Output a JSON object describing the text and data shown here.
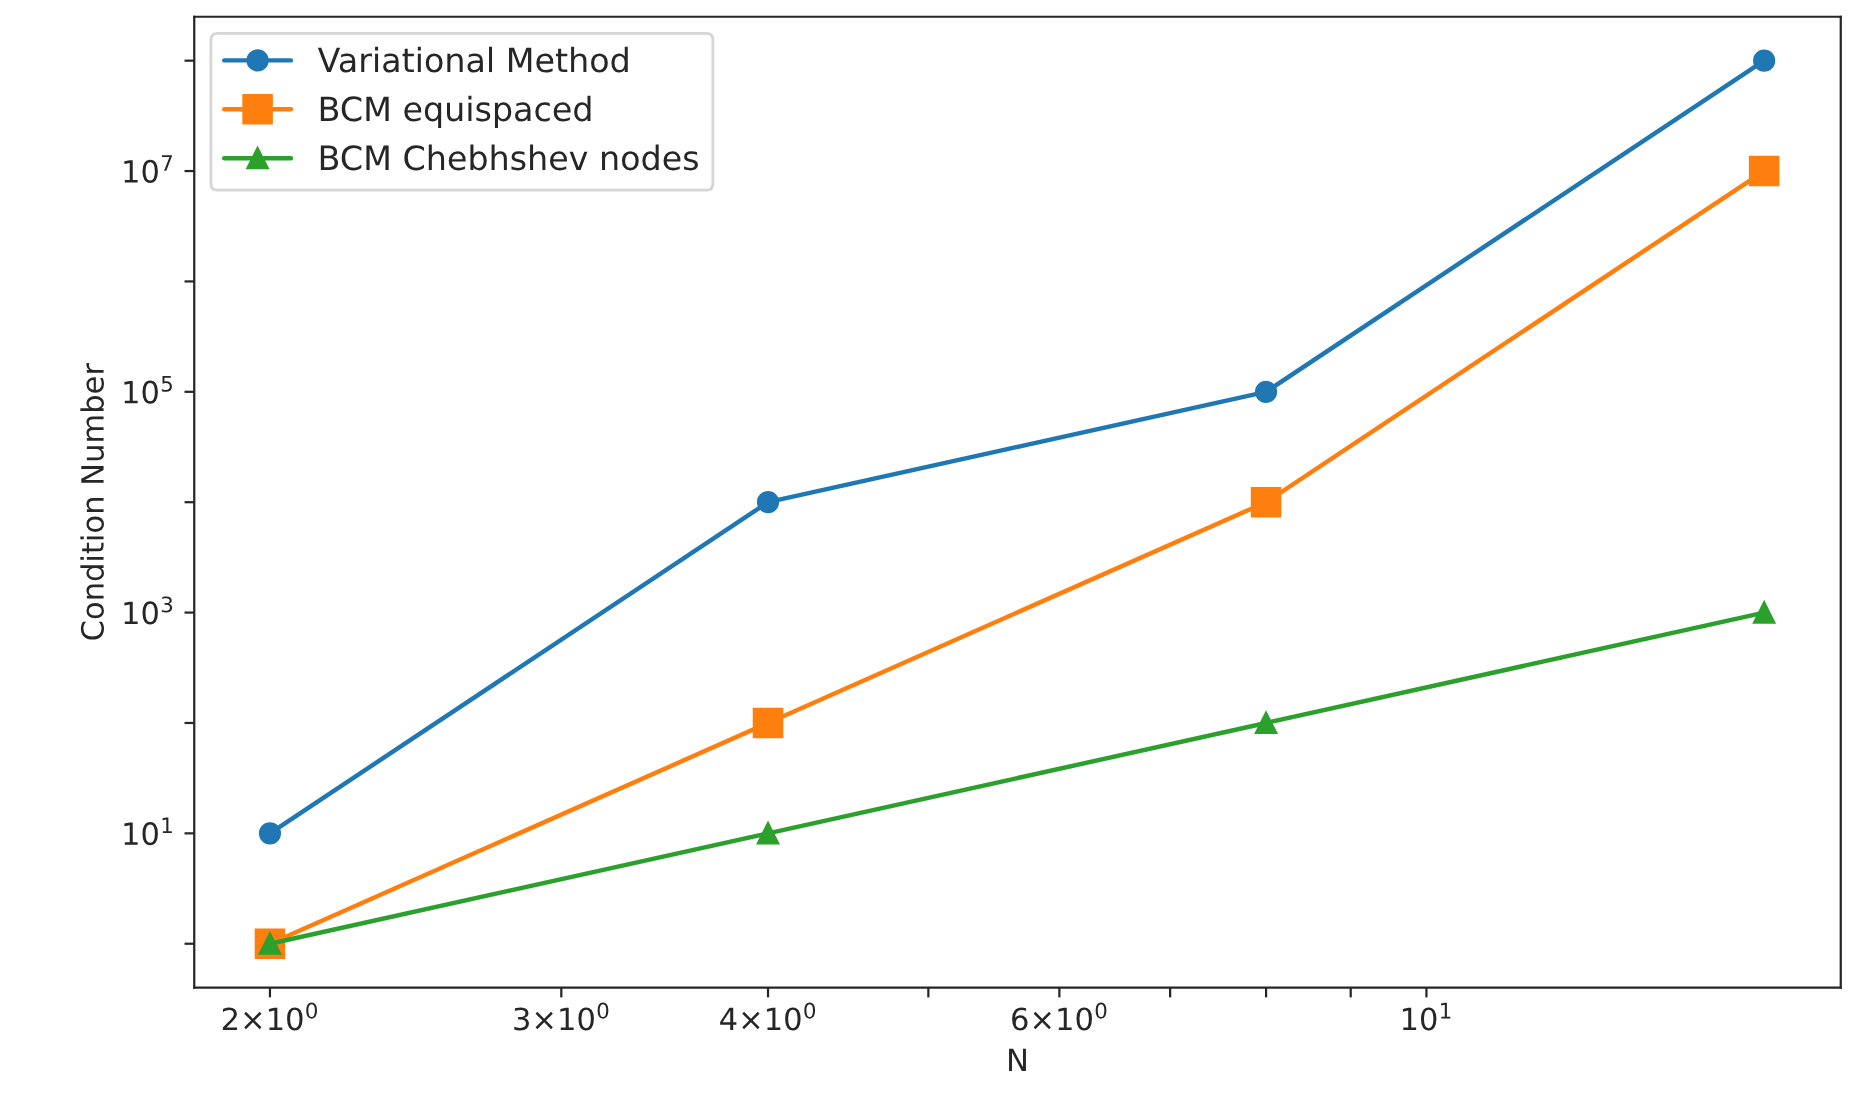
{
  "chart_data": {
    "type": "line",
    "xlabel": "N",
    "ylabel": "Condition Number",
    "log": "xy",
    "grid": false,
    "legend": "top left",
    "x": [
      2,
      4,
      8,
      16
    ],
    "xlim": [
      1.8,
      17.8
    ],
    "xticks": [
      {
        "value": 2,
        "label": "2×10$^{0}$"
      },
      {
        "value": 3,
        "label": "3×10$^{0}$"
      },
      {
        "value": 4,
        "label": "4×10$^{0}$"
      },
      {
        "value": 5,
        "label": null
      },
      {
        "value": 6,
        "label": "6×10$^{0}$"
      },
      {
        "value": 7,
        "label": null
      },
      {
        "value": 8,
        "label": null
      },
      {
        "value": 9,
        "label": null
      },
      {
        "value": 10,
        "label": "10$^{1}$"
      }
    ],
    "ylim": [
      0.4,
      250000000.0
    ],
    "yticks": [
      {
        "value": 1,
        "label": null
      },
      {
        "value": 10,
        "label": "10$^{1}$"
      },
      {
        "value": 100,
        "label": null
      },
      {
        "value": 1000,
        "label": "10$^{3}$"
      },
      {
        "value": 10000,
        "label": null
      },
      {
        "value": 100000,
        "label": "10$^{5}$"
      },
      {
        "value": 1000000,
        "label": null
      },
      {
        "value": 10000000,
        "label": "10$^{7}$"
      },
      {
        "value": 100000000,
        "label": null
      }
    ],
    "series": [
      {
        "name": "Variational Method",
        "color": "#1f77b4",
        "marker": "circle",
        "values": [
          10,
          10000,
          100000,
          100000000
        ]
      },
      {
        "name": "BCM equispaced",
        "color": "#ff7f0e",
        "marker": "square",
        "values": [
          1,
          100,
          10000,
          10000000
        ]
      },
      {
        "name": "BCM Chebhshev nodes",
        "color": "#2ca02c",
        "marker": "triangle",
        "values": [
          1,
          10,
          100,
          1000
        ]
      }
    ]
  }
}
